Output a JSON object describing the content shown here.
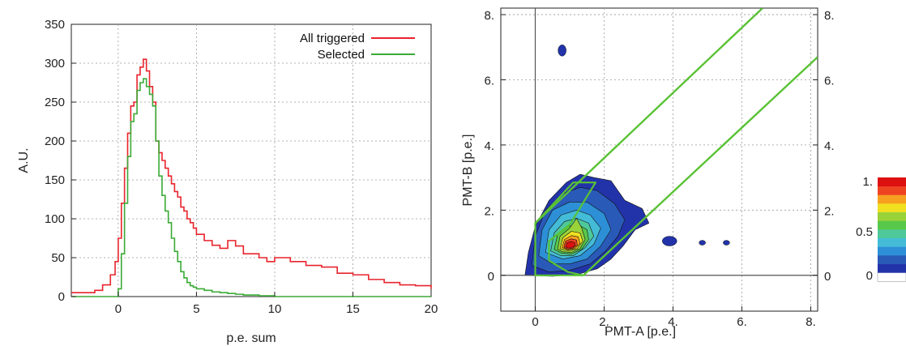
{
  "chart_data": [
    {
      "type": "line",
      "title": "",
      "xlabel": "p.e. sum",
      "ylabel": "A.U.",
      "xlim": [
        -3,
        20
      ],
      "ylim": [
        0,
        350
      ],
      "xticks": [
        "0",
        "5",
        "10",
        "15",
        "20"
      ],
      "yticks": [
        "0",
        "50",
        "100",
        "150",
        "200",
        "250",
        "300",
        "350"
      ],
      "grid": true,
      "legend_position": "top-right",
      "style": "step",
      "series": [
        {
          "name": "All triggered",
          "color": "#e8242c",
          "x": [
            -3,
            -2,
            -1.5,
            -1,
            -0.5,
            -0.2,
            0,
            0.2,
            0.4,
            0.6,
            0.8,
            1,
            1.2,
            1.4,
            1.6,
            1.8,
            2,
            2.2,
            2.4,
            2.6,
            2.8,
            3,
            3.2,
            3.4,
            3.6,
            3.8,
            4,
            4.2,
            4.4,
            4.6,
            4.8,
            5,
            5.5,
            6,
            6.5,
            7,
            7.5,
            8,
            8.5,
            9,
            9.5,
            10,
            11,
            12,
            13,
            14,
            15,
            16,
            17,
            18,
            19,
            20
          ],
          "y": [
            5,
            5,
            8,
            15,
            28,
            45,
            75,
            120,
            165,
            210,
            245,
            250,
            285,
            295,
            305,
            290,
            270,
            250,
            200,
            185,
            175,
            165,
            155,
            145,
            135,
            128,
            115,
            110,
            100,
            95,
            88,
            80,
            72,
            66,
            62,
            72,
            65,
            55,
            55,
            50,
            45,
            50,
            45,
            40,
            38,
            30,
            28,
            22,
            18,
            15,
            14,
            10
          ]
        },
        {
          "name": "Selected",
          "color": "#3aaa35",
          "x": [
            -3,
            -1,
            -0.5,
            -0.2,
            0,
            0.2,
            0.4,
            0.6,
            0.8,
            1,
            1.2,
            1.4,
            1.6,
            1.8,
            2,
            2.2,
            2.4,
            2.6,
            2.8,
            3,
            3.2,
            3.4,
            3.6,
            3.8,
            4,
            4.2,
            4.4,
            4.6,
            4.8,
            5,
            5.5,
            6,
            6.5,
            7,
            7.5,
            8,
            9,
            10,
            20
          ],
          "y": [
            0,
            0,
            0,
            0,
            10,
            55,
            120,
            180,
            225,
            235,
            265,
            275,
            280,
            270,
            260,
            245,
            200,
            155,
            130,
            110,
            95,
            75,
            58,
            45,
            32,
            24,
            18,
            14,
            12,
            10,
            8,
            6,
            5,
            4,
            3,
            2,
            1,
            0,
            0
          ]
        }
      ]
    },
    {
      "type": "heatmap",
      "subtype": "filled-contour",
      "title": "",
      "xlabel": "PMT-A [p.e.]",
      "ylabel": "PMT-B [p.e.]",
      "xlim": [
        -1,
        8.2
      ],
      "ylim": [
        -1.1,
        8.2
      ],
      "xticks": [
        "0",
        "2.",
        "4.",
        "6.",
        "8."
      ],
      "yticks": [
        "0",
        "2.",
        "4.",
        "6.",
        "8."
      ],
      "yticks_right": [
        "0",
        "2.",
        "4.",
        "6.",
        "8."
      ],
      "grid": true,
      "peak": [
        1.0,
        0.9
      ],
      "colorbar": {
        "ticks": [
          "0",
          "0.5",
          "1."
        ],
        "colors": [
          "#ffffff",
          "#2233aa",
          "#2a5ab8",
          "#2d8fd6",
          "#44bcd8",
          "#4fc89a",
          "#58c84a",
          "#9ad23a",
          "#f0e020",
          "#f7a020",
          "#ee4422",
          "#dd1111"
        ]
      },
      "selection_region": {
        "color": "#59c234",
        "upper_line": [
          [
            0,
            1.6
          ],
          [
            6.6,
            8.2
          ]
        ],
        "lower_line": [
          [
            1.4,
            0
          ],
          [
            8.2,
            6.7
          ]
        ],
        "polygon": [
          [
            0,
            0
          ],
          [
            0,
            1.6
          ],
          [
            1.1,
            2.85
          ],
          [
            1.75,
            2.85
          ],
          [
            1.0,
            1.55
          ],
          [
            0.4,
            1.05
          ],
          [
            0.4,
            0.45
          ],
          [
            0.95,
            0.1
          ],
          [
            1.4,
            0
          ],
          [
            0.4,
            0
          ]
        ]
      },
      "islands": [
        [
          0.78,
          6.9
        ],
        [
          3.9,
          1.05
        ],
        [
          4.85,
          1.0
        ],
        [
          5.55,
          1.0
        ]
      ]
    }
  ]
}
